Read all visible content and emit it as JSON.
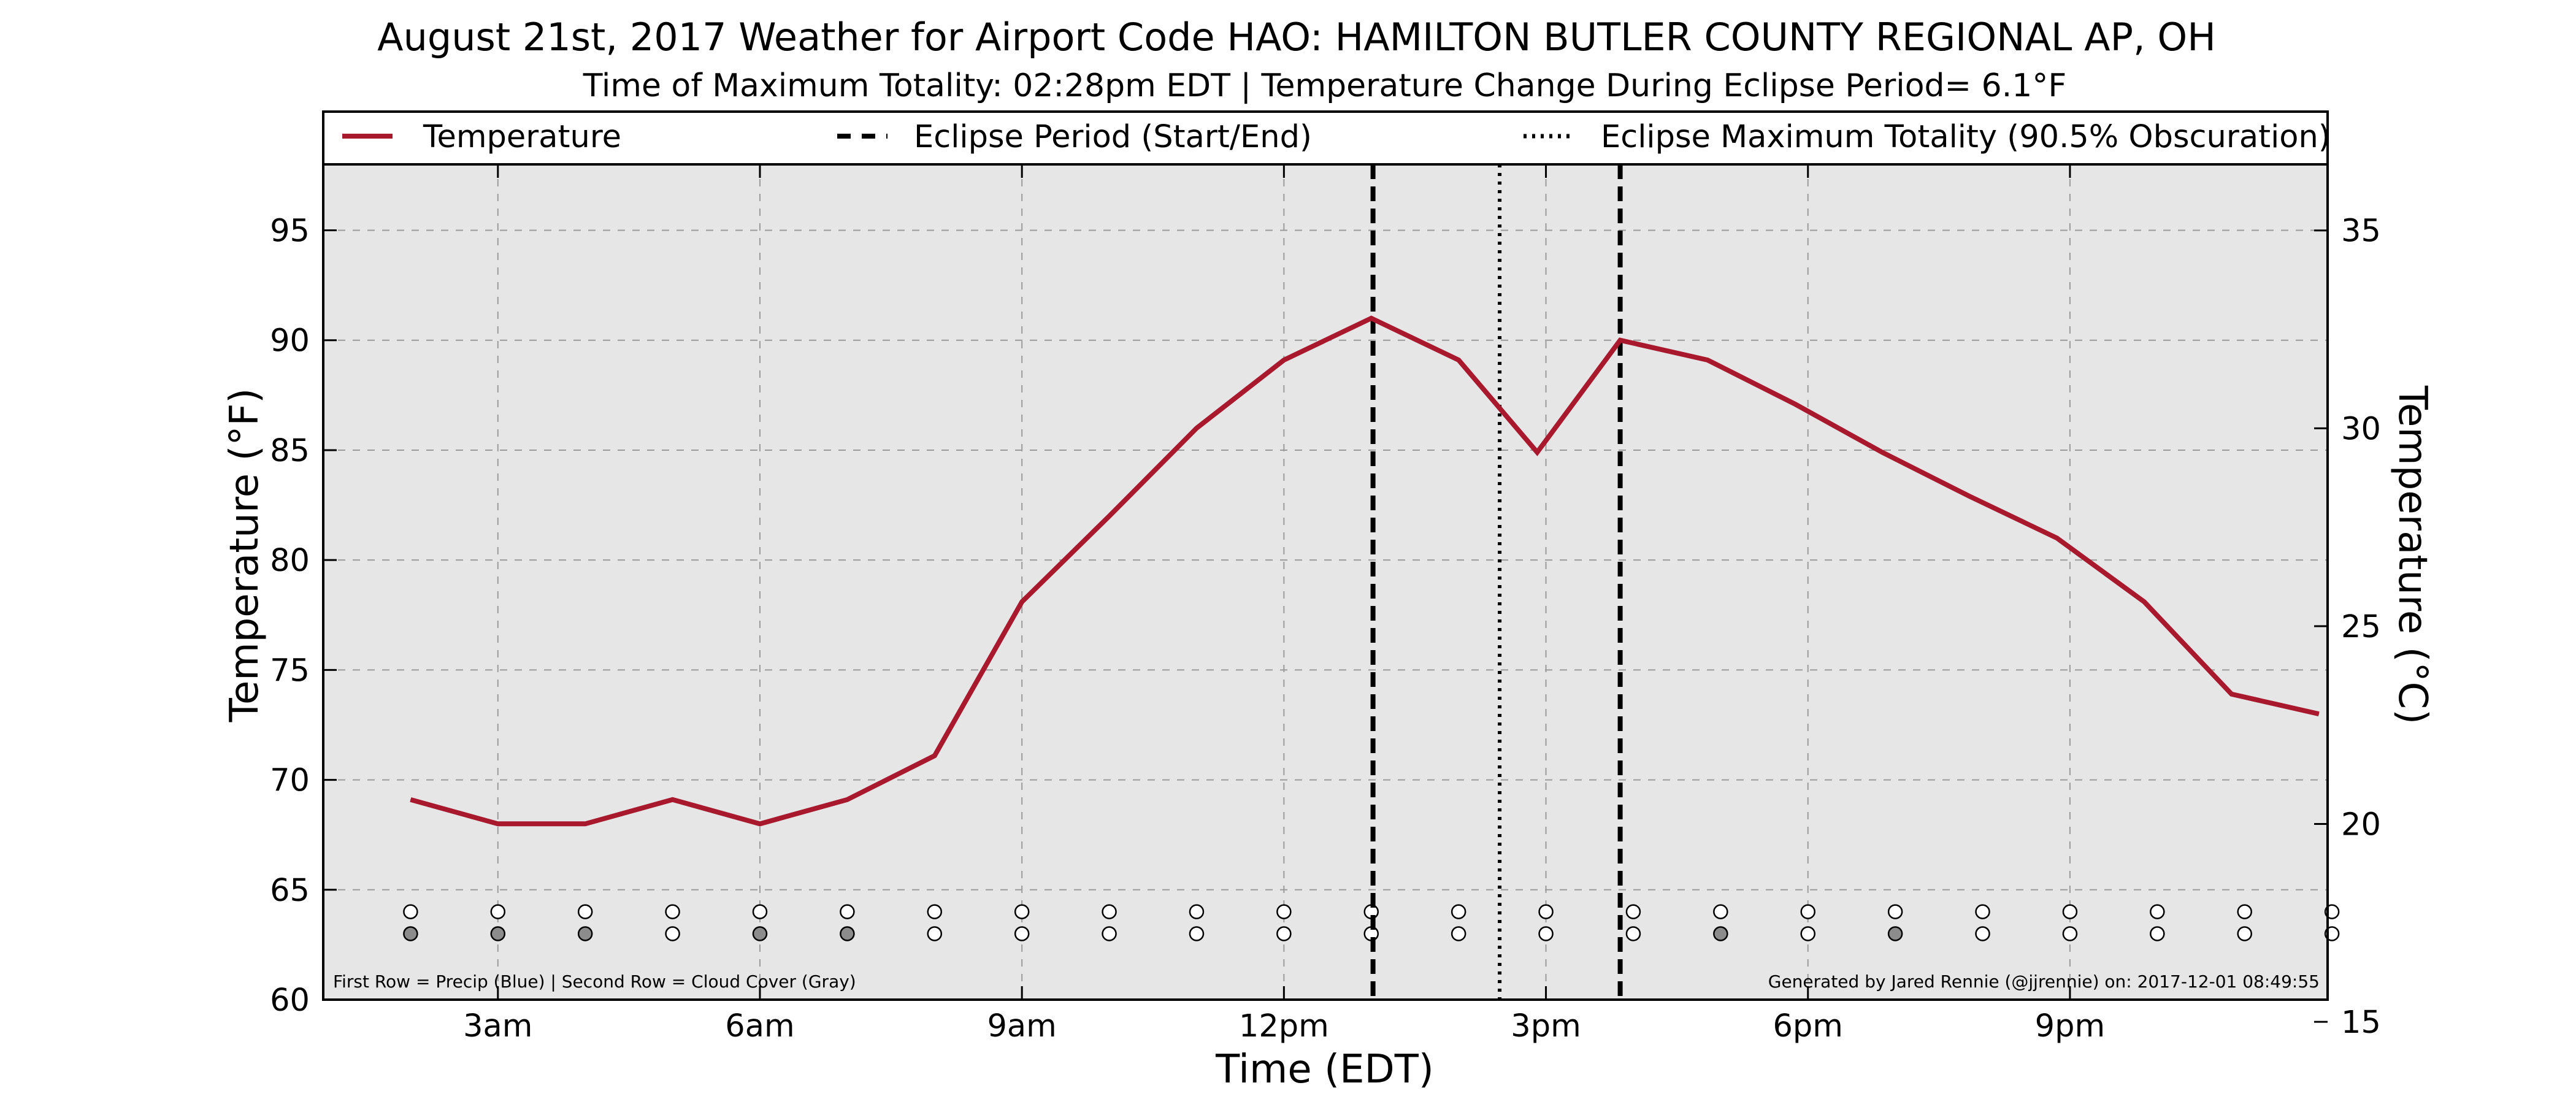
{
  "chart_data": {
    "type": "line",
    "title": "August 21st, 2017 Weather for Airport Code HAO: HAMILTON BUTLER COUNTY REGIONAL AP, OH",
    "subtitle": "Time of Maximum Totality: 02:28pm EDT | Temperature Change During Eclipse Period= 6.1°F",
    "xlabel": "Time (EDT)",
    "ylabel": "Temperature (°F)",
    "ylabel_right": "Temperature (°C)",
    "xlim": [
      1,
      23.95
    ],
    "ylim": [
      60,
      98
    ],
    "ylim_right": [
      15.56,
      36.67
    ],
    "x_ticks": [
      {
        "x": 3,
        "label": "3am"
      },
      {
        "x": 6,
        "label": "6am"
      },
      {
        "x": 9,
        "label": "9am"
      },
      {
        "x": 12,
        "label": "12pm"
      },
      {
        "x": 15,
        "label": "3pm"
      },
      {
        "x": 18,
        "label": "6pm"
      },
      {
        "x": 21,
        "label": "9pm"
      }
    ],
    "y_ticks": [
      60,
      65,
      70,
      75,
      80,
      85,
      90,
      95
    ],
    "y_ticks_right": [
      15,
      20,
      25,
      30,
      35
    ],
    "grid": true,
    "legend_position": "top",
    "legend": [
      {
        "label": "Temperature",
        "style": "solid"
      },
      {
        "label": "Eclipse Period (Start/End)",
        "style": "dashed"
      },
      {
        "label": "Eclipse Maximum Totality (90.5% Obscuration)",
        "style": "dotted"
      }
    ],
    "series": [
      {
        "name": "Temperature",
        "color": "#a8192e",
        "x": [
          2,
          3,
          4,
          5,
          6,
          7,
          8,
          9,
          10,
          11,
          12,
          13,
          14,
          14.9,
          15.85,
          16.85,
          17.85,
          18.85,
          19.85,
          20.85,
          21.85,
          22.85,
          23.85
        ],
        "y": [
          69.1,
          68,
          68,
          69.1,
          68,
          69.1,
          71.1,
          78.1,
          82,
          86,
          89.1,
          91,
          89.1,
          84.9,
          90,
          89.1,
          87.1,
          84.9,
          82.9,
          81,
          78.1,
          73.9,
          73
        ]
      }
    ],
    "eclipse_start_x": 13.02,
    "eclipse_end_x": 15.85,
    "eclipse_max_x": 14.47,
    "indicator_rows": {
      "x": [
        2,
        3,
        4,
        5,
        6,
        7,
        8,
        9,
        10,
        11,
        12,
        13,
        14,
        15,
        16,
        17,
        18,
        19,
        20,
        21,
        22,
        23,
        24
      ],
      "precip_y": 64,
      "cloud_y": 63,
      "precip_filled": [
        false,
        false,
        false,
        false,
        false,
        false,
        false,
        false,
        false,
        false,
        false,
        false,
        false,
        false,
        false,
        false,
        false,
        false,
        false,
        false,
        false,
        false,
        false
      ],
      "cloud_filled": [
        true,
        true,
        true,
        false,
        true,
        true,
        false,
        false,
        false,
        false,
        false,
        false,
        false,
        false,
        false,
        true,
        false,
        true,
        false,
        false,
        false,
        false,
        false
      ],
      "precip_color": "#4f81bd",
      "cloud_color": "#8c8c8c"
    },
    "footnote_left": "First Row = Precip (Blue) | Second Row = Cloud Cover (Gray)",
    "footnote_right": "Generated by Jared Rennie (@jjrennie) on: 2017-12-01 08:49:55"
  }
}
